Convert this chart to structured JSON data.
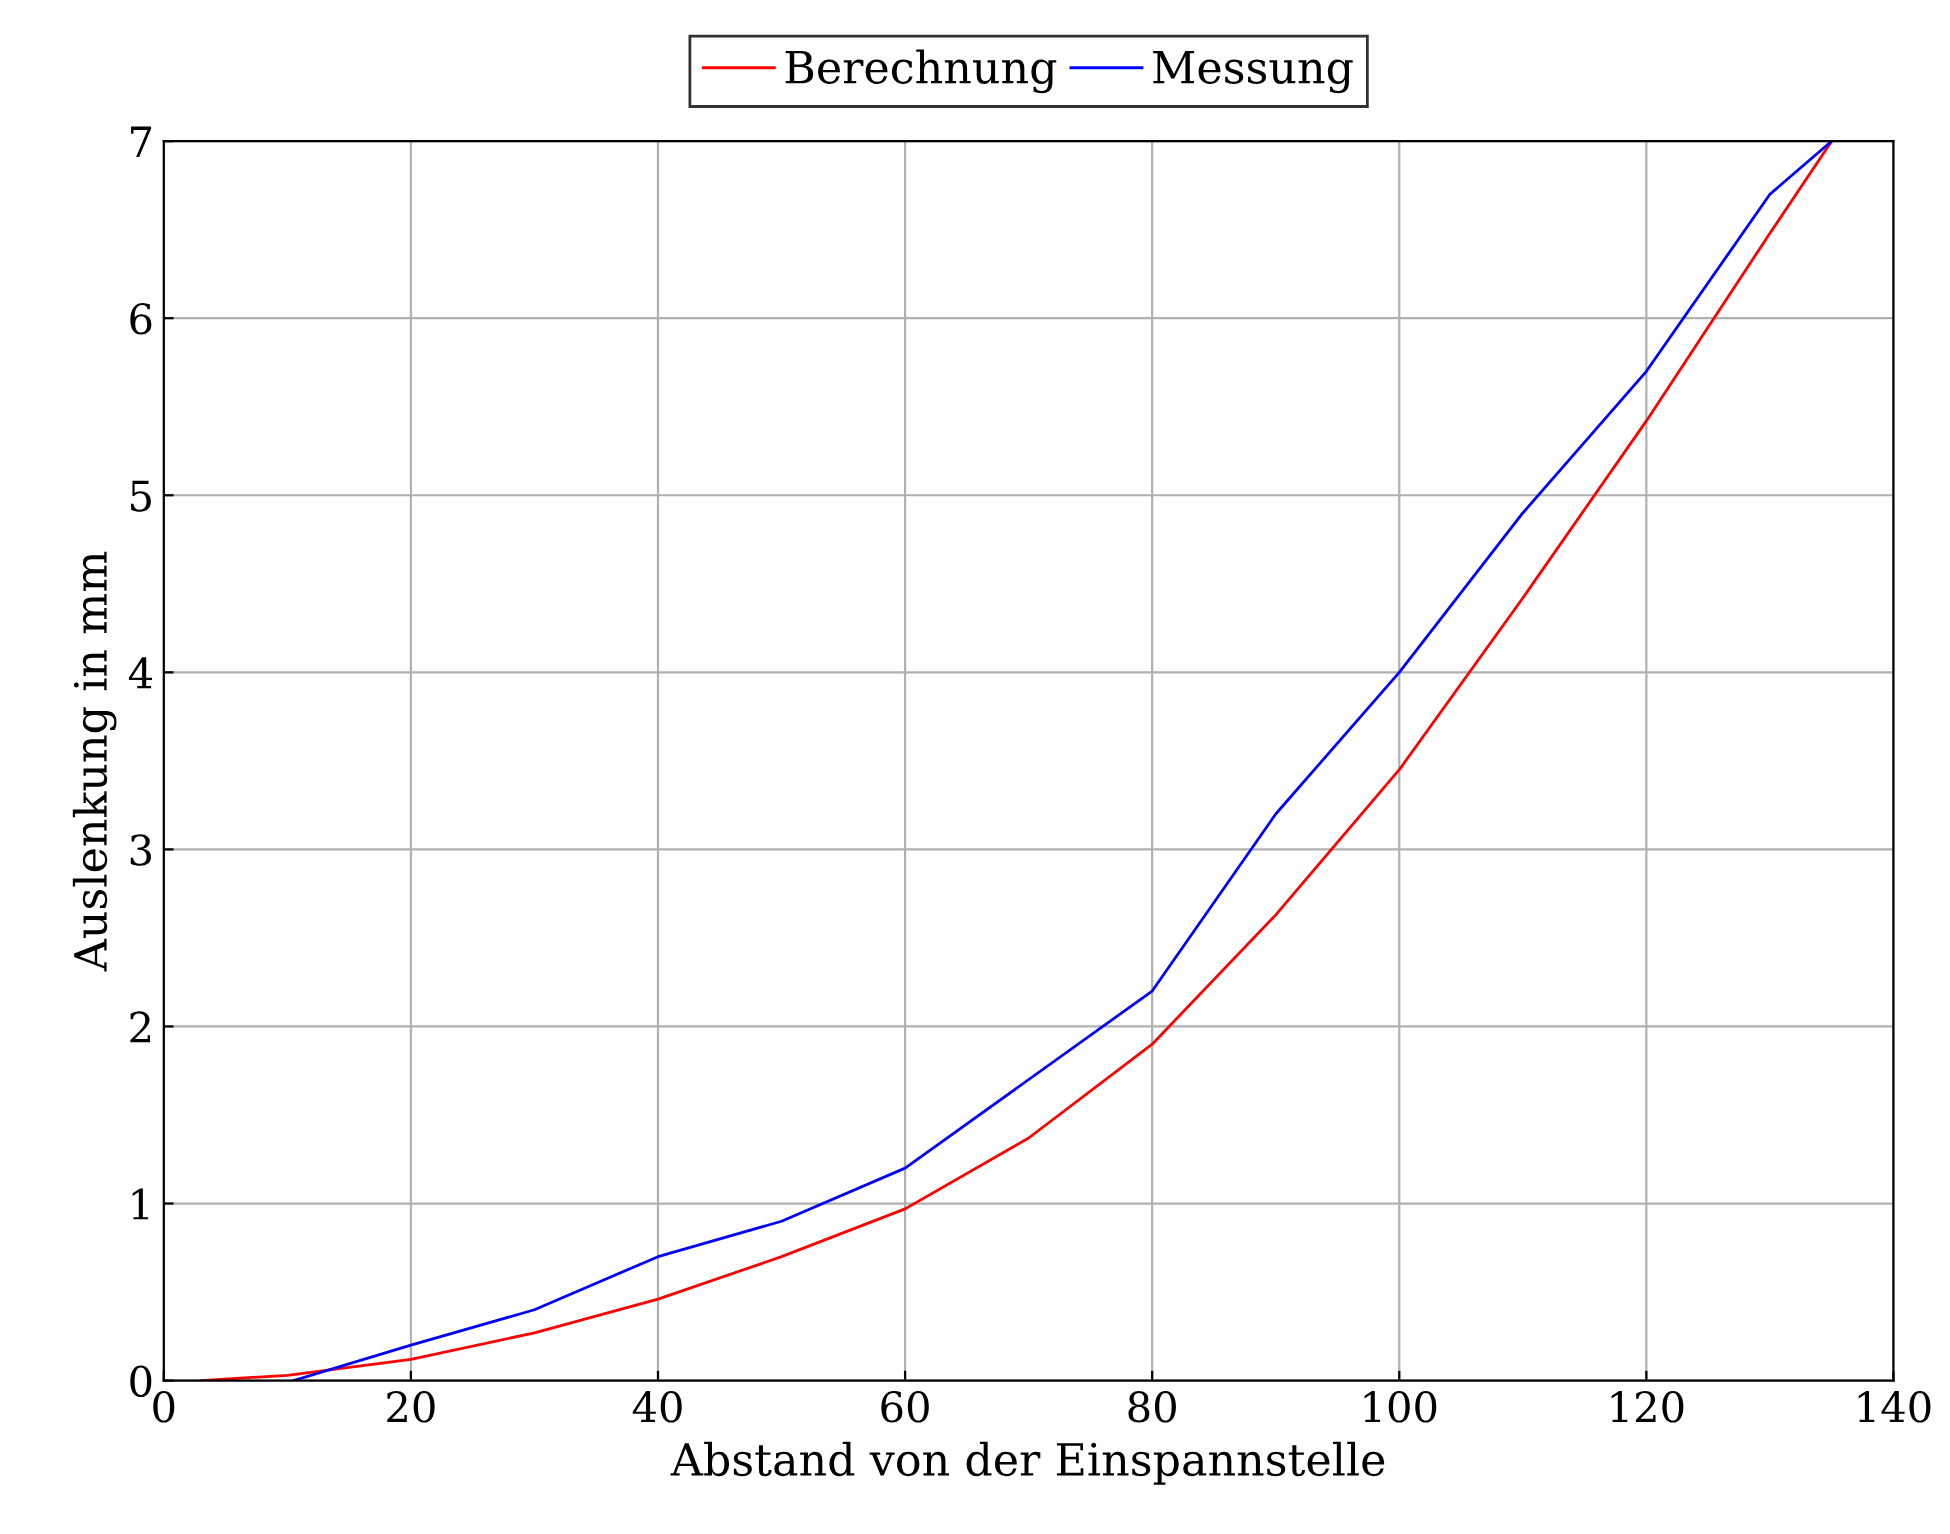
{
  "chart_data": {
    "type": "line",
    "xlabel": "Abstand von der Einspannstelle",
    "ylabel": "Auslenkung in mm",
    "xlim": [
      0,
      140
    ],
    "ylim": [
      0,
      7
    ],
    "xticks": [
      0,
      20,
      40,
      60,
      80,
      100,
      120,
      140
    ],
    "yticks": [
      0,
      1,
      2,
      3,
      4,
      5,
      6,
      7
    ],
    "grid": true,
    "legend": "top",
    "marker": "none",
    "line_style": "solid",
    "series": [
      {
        "name": "Berechnung",
        "color": "#ff0000",
        "x": [
          3,
          10,
          20,
          30,
          40,
          50,
          60,
          70,
          80,
          90,
          100,
          110,
          120,
          130,
          135
        ],
        "values": [
          0,
          0.03,
          0.12,
          0.27,
          0.46,
          0.7,
          0.97,
          1.37,
          1.9,
          2.63,
          3.45,
          4.42,
          5.42,
          6.48,
          7.0
        ]
      },
      {
        "name": "Messung",
        "color": "#0000ff",
        "x": [
          10.5,
          20,
          30,
          40,
          50,
          60,
          80,
          90,
          100,
          110,
          120,
          130,
          135
        ],
        "values": [
          0,
          0.2,
          0.4,
          0.7,
          0.9,
          1.2,
          2.2,
          3.2,
          4.0,
          4.9,
          5.7,
          6.7,
          7.0
        ]
      }
    ]
  }
}
